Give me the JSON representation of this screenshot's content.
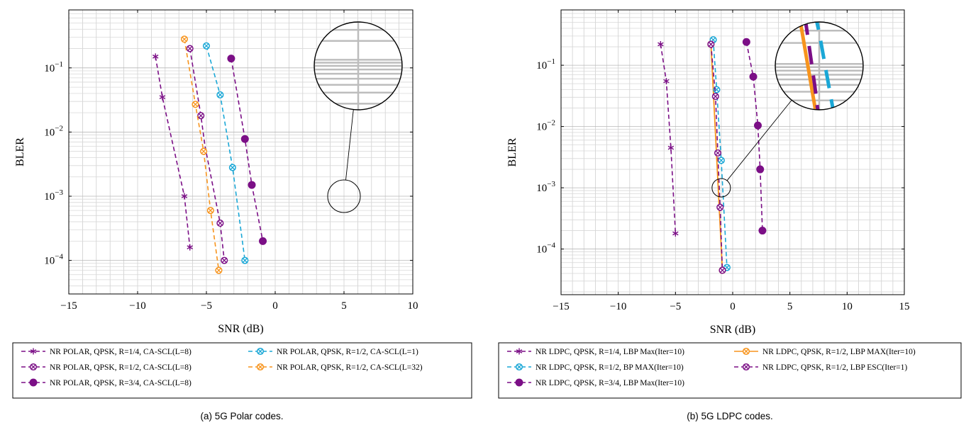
{
  "chart_data": [
    {
      "type": "line",
      "panel": "a",
      "caption": "(a) 5G Polar codes.",
      "xlabel": "SNR (dB)",
      "ylabel": "BLER",
      "xlim": [
        -15,
        10
      ],
      "ylim": [
        3e-05,
        0.8
      ],
      "yscale": "log",
      "grid": true,
      "xticks": [
        "−15",
        "−10",
        "−5",
        "0",
        "5",
        "10"
      ],
      "yticks": [
        {
          "base": "10",
          "exp": "−1",
          "v": 0.1
        },
        {
          "base": "10",
          "exp": "−2",
          "v": 0.01
        },
        {
          "base": "10",
          "exp": "−3",
          "v": 0.001
        },
        {
          "base": "10",
          "exp": "−4",
          "v": 0.0001
        }
      ],
      "legend_position": "below",
      "legend_columns": 2,
      "inset_zoom": true,
      "series": [
        {
          "name": "NR POLAR, QPSK, R=1/4, CA-SCL(L=8)",
          "color": "#7B0F86",
          "marker": "star",
          "x": [
            -8.7,
            -8.2,
            -6.6,
            -6.2
          ],
          "y": [
            0.15,
            0.035,
            0.001,
            0.00016
          ]
        },
        {
          "name": "NR POLAR, QPSK, R=1/2, CA-SCL(L=1)",
          "color": "#1AA7D6",
          "marker": "otimes",
          "x": [
            -5.0,
            -4.0,
            -3.1,
            -2.2
          ],
          "y": [
            0.22,
            0.038,
            0.0028,
            0.0001
          ]
        },
        {
          "name": "NR POLAR, QPSK, R=1/2, CA-SCL(L=8)",
          "color": "#7B0F86",
          "marker": "otimes",
          "x": [
            -6.2,
            -5.4,
            -5.1,
            -4.0,
            -3.7
          ],
          "y": [
            0.2,
            0.018,
            0.0,
            0.00038,
            0.0001
          ]
        },
        {
          "name": "NR POLAR, QPSK, R=1/2, CA-SCL(L=32)",
          "color": "#F7941D",
          "marker": "otimes",
          "x": [
            -6.6,
            -5.8,
            -5.2,
            -4.7,
            -4.1
          ],
          "y": [
            0.28,
            0.027,
            0.005,
            0.0006,
            7e-05
          ]
        },
        {
          "name": "NR POLAR, QPSK, R=3/4, CA-SCL(L=8)",
          "color": "#7B0F86",
          "marker": "dot",
          "x": [
            -3.2,
            -2.2,
            -1.7,
            -0.9
          ],
          "y": [
            0.14,
            0.0078,
            0.0015,
            0.0002
          ]
        }
      ]
    },
    {
      "type": "line",
      "panel": "b",
      "caption": "(b) 5G LDPC codes.",
      "xlabel": "SNR (dB)",
      "ylabel": "BLER",
      "xlim": [
        -15,
        15
      ],
      "ylim": [
        1.8e-05,
        0.8
      ],
      "yscale": "log",
      "grid": true,
      "xticks": [
        "−15",
        "−10",
        "−5",
        "0",
        "5",
        "10",
        "15"
      ],
      "yticks": [
        {
          "base": "10",
          "exp": "−1",
          "v": 0.1
        },
        {
          "base": "10",
          "exp": "−2",
          "v": 0.01
        },
        {
          "base": "10",
          "exp": "−3",
          "v": 0.001
        },
        {
          "base": "10",
          "exp": "−4",
          "v": 0.0001
        }
      ],
      "legend_position": "below",
      "legend_columns": 2,
      "inset_zoom": true,
      "series": [
        {
          "name": "NR LDPC, QPSK, R=1/4, LBP Max(Iter=10)",
          "color": "#7B0F86",
          "marker": "star",
          "x": [
            -6.3,
            -5.8,
            -5.4,
            -5.0
          ],
          "y": [
            0.22,
            0.055,
            0.0045,
            0.00018
          ]
        },
        {
          "name": "NR LDPC, QPSK, R=1/2, LBP MAX(Iter=10)",
          "color": "#F7941D",
          "marker": "otimes",
          "x": [
            -1.9,
            -0.9
          ],
          "y": [
            0.22,
            4.5e-05
          ]
        },
        {
          "name": "NR LDPC, QPSK, R=1/2, BP MAX(Iter=10)",
          "color": "#1AA7D6",
          "marker": "otimes",
          "x": [
            -1.7,
            -1.4,
            -1.0,
            -0.5
          ],
          "y": [
            0.26,
            0.04,
            0.0028,
            5e-05
          ]
        },
        {
          "name": "NR LDPC, QPSK, R=1/2, LBP ESC(Iter=1)",
          "color": "#7B0F86",
          "marker": "otimes",
          "x": [
            -1.9,
            -1.5,
            -1.3,
            -1.1,
            -0.9
          ],
          "y": [
            0.22,
            0.031,
            0.0037,
            0.00048,
            4.5e-05
          ]
        },
        {
          "name": "NR LDPC, QPSK, R=3/4, LBP Max(Iter=10)",
          "color": "#7B0F86",
          "marker": "dot",
          "x": [
            1.2,
            1.8,
            2.2,
            2.4,
            2.6
          ],
          "y": [
            0.24,
            0.065,
            0.0104,
            0.002,
            0.0002
          ]
        }
      ]
    }
  ]
}
